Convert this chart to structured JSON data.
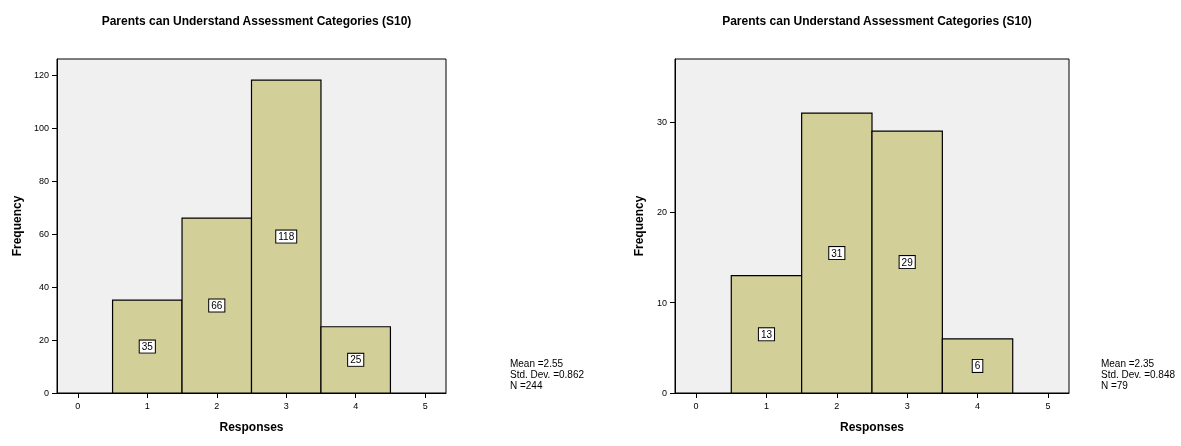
{
  "chart_data": [
    {
      "type": "histogram",
      "title": "Parents can Understand Assessment Categories (S10)",
      "xlabel": "Responses",
      "ylabel": "Frequency",
      "bins": [
        0.5,
        1.5,
        2.5,
        3.5,
        4.5
      ],
      "values": [
        35,
        66,
        118,
        25
      ],
      "color": "#d3cf99",
      "xlim": [
        -0.3,
        5.3
      ],
      "xticks": [
        0,
        1,
        2,
        3,
        4,
        5
      ],
      "ylim": [
        0,
        126
      ],
      "yticks": [
        0,
        20,
        40,
        60,
        80,
        100,
        120
      ],
      "grid": false,
      "data_labels": true,
      "annotations": [
        "Mean =2.55\nStd. Dev. =0.862\nN =244"
      ]
    },
    {
      "type": "histogram",
      "title": "Parents can Understand Assessment Categories (S10)",
      "xlabel": "Responses",
      "ylabel": "Frequency",
      "bins": [
        0.5,
        1.5,
        2.5,
        3.5,
        4.5
      ],
      "values": [
        13,
        31,
        29,
        6
      ],
      "color": "#d3cf99",
      "xlim": [
        -0.3,
        5.3
      ],
      "xticks": [
        0,
        1,
        2,
        3,
        4,
        5
      ],
      "ylim": [
        0,
        37
      ],
      "yticks": [
        0,
        10,
        20,
        30
      ],
      "grid": false,
      "data_labels": true,
      "annotations": [
        "Mean =2.35\nStd. Dev. =0.848\nN =79"
      ]
    }
  ]
}
